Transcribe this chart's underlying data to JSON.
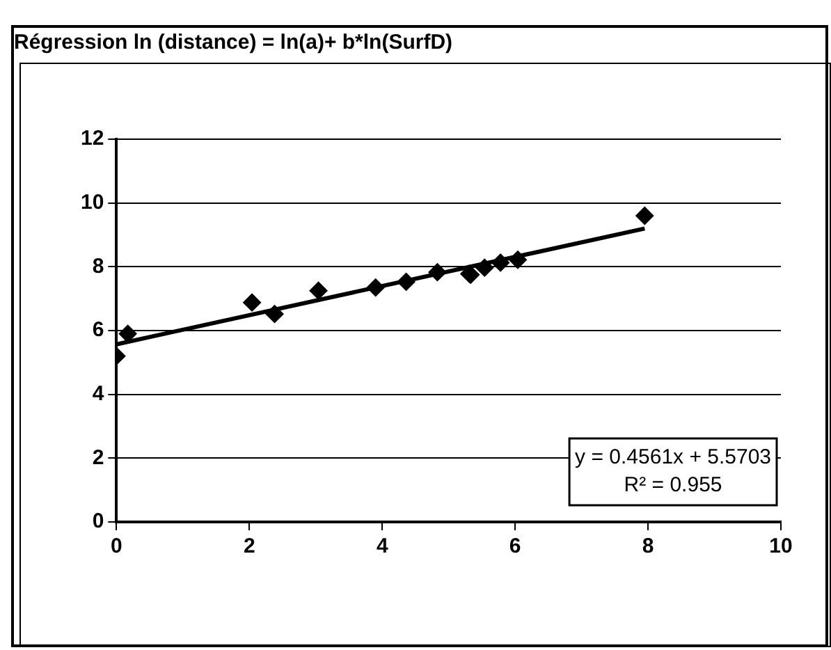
{
  "chart_data": {
    "type": "scatter",
    "title": "Régression ln (distance) = ln(a)+ b*ln(SurfD)",
    "series": [
      {
        "color": "#000000",
        "x": [
          0,
          0.17,
          2.04,
          2.38,
          3.04,
          3.9,
          4.36,
          4.83,
          5.31,
          5.33,
          5.54,
          5.78,
          6.04,
          7.95
        ],
        "values": [
          5.2,
          5.9,
          6.88,
          6.52,
          7.25,
          7.35,
          7.53,
          7.83,
          7.78,
          7.75,
          7.97,
          8.13,
          8.22,
          9.6
        ]
      },
      {
        "type": "line",
        "marker": "none",
        "color": "#000000",
        "x": [
          0,
          7.95
        ],
        "values": [
          5.57,
          9.2
        ]
      }
    ],
    "xlim": [
      0,
      10
    ],
    "xticks": [
      0,
      2,
      4,
      6,
      8,
      10
    ],
    "ylim": [
      0,
      12
    ],
    "yticks": [
      0,
      2,
      4,
      6,
      8,
      10,
      12
    ],
    "grid": "y",
    "legend": false,
    "marker": "diamond",
    "annotations": [
      "y = 0.4561x + 5.5703",
      "R² = 0.955"
    ]
  }
}
